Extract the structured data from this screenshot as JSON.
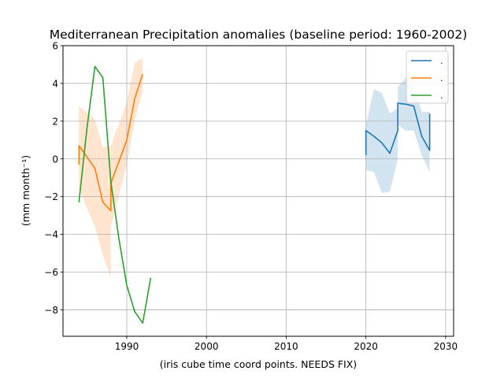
{
  "chart_data": {
    "type": "line",
    "title": "Mediterranean Precipitation anomalies (baseline period: 1960-2002)",
    "xlabel": "(iris cube time coord points. NEEDS FIX)",
    "ylabel": "(mm month⁻¹)",
    "xlim": [
      1982,
      2031
    ],
    "ylim": [
      -9.4,
      6.0
    ],
    "xticks": [
      1990,
      2000,
      2010,
      2020,
      2030
    ],
    "yticks": [
      -8,
      -6,
      -4,
      -2,
      0,
      2,
      4,
      6
    ],
    "grid": true,
    "legend_position": "top-right",
    "series": [
      {
        "name": ".",
        "color": "#1f77b4",
        "x": [
          2020,
          2020,
          2021,
          2022,
          2023,
          2024,
          2024,
          2025,
          2026,
          2027,
          2028,
          2028
        ],
        "y": [
          0.2,
          1.5,
          1.2,
          0.85,
          0.3,
          1.5,
          2.95,
          2.9,
          2.8,
          1.2,
          0.45,
          2.4
        ],
        "band_upper": [
          0.8,
          1.8,
          3.7,
          3.5,
          2.4,
          2.7,
          3.8,
          4.3,
          3.8,
          2.5,
          2.5,
          3.0
        ],
        "band_lower": [
          -0.3,
          -0.6,
          -0.7,
          -1.8,
          -1.75,
          0.0,
          1.8,
          1.5,
          1.5,
          0.2,
          -0.7,
          0.0
        ]
      },
      {
        "name": ".",
        "color": "#ff7f0e",
        "x": [
          1984,
          1984,
          1986,
          1987,
          1988,
          1988,
          1990,
          1991,
          1992
        ],
        "y": [
          -0.3,
          0.7,
          -0.5,
          -2.3,
          -2.75,
          -1.3,
          1.0,
          3.2,
          4.5
        ],
        "band_upper": [
          2.5,
          2.8,
          2.1,
          0.6,
          0.7,
          0.7,
          3.0,
          5.1,
          5.35
        ],
        "band_lower": [
          -2.9,
          -1.6,
          -3.6,
          -5.1,
          -6.3,
          -3.6,
          -0.3,
          2.0,
          3.6
        ]
      },
      {
        "name": ".",
        "color": "#2ca02c",
        "x": [
          1984,
          1985,
          1986,
          1987,
          1988,
          1989,
          1990,
          1991,
          1992,
          1993
        ],
        "y": [
          -2.3,
          1.6,
          4.9,
          4.3,
          -1.2,
          -4.2,
          -6.7,
          -8.1,
          -8.7,
          -6.3
        ]
      }
    ]
  }
}
